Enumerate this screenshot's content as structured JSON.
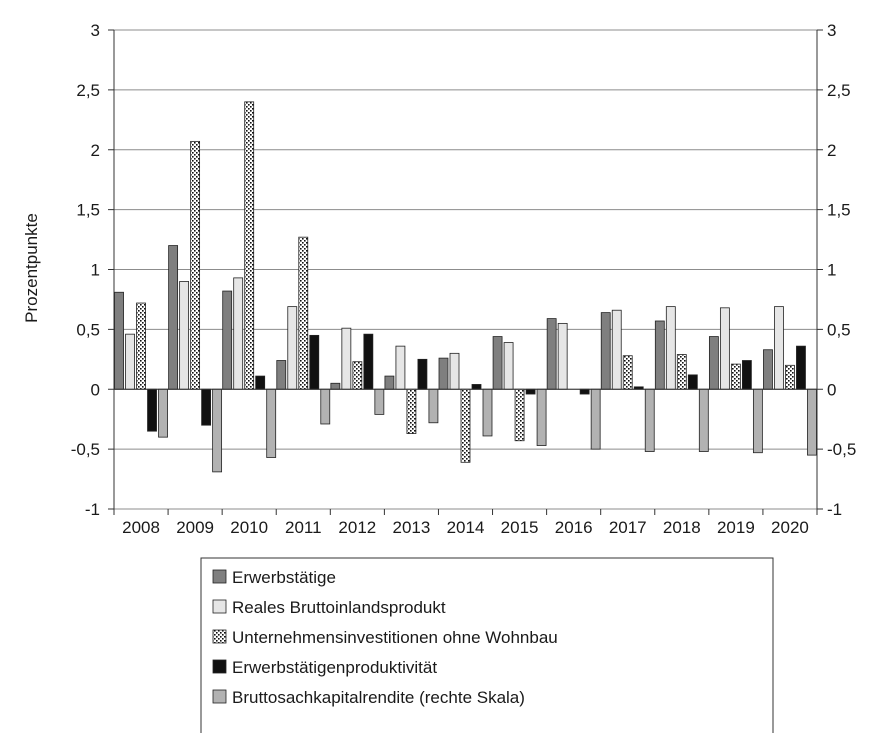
{
  "chart_data": {
    "type": "bar",
    "categories": [
      "2008",
      "2009",
      "2010",
      "2011",
      "2012",
      "2013",
      "2014",
      "2015",
      "2016",
      "2017",
      "2018",
      "2019",
      "2020"
    ],
    "ylabel": "Prozentpunkte",
    "ylim": [
      -1,
      3
    ],
    "y_ticks": [
      "-1",
      "-0,5",
      "0",
      "0,5",
      "1",
      "1,5",
      "2",
      "2,5",
      "3"
    ],
    "y_tick_values": [
      -1,
      -0.5,
      0,
      0.5,
      1,
      1.5,
      2,
      2.5,
      3
    ],
    "grid": true,
    "legend_position": "bottom",
    "series": [
      {
        "name": "Erwerbstätige",
        "pattern": "dark-gray",
        "color": "#7f7f7f",
        "values": [
          0.81,
          1.2,
          0.82,
          0.24,
          0.05,
          0.11,
          0.26,
          0.44,
          0.59,
          0.64,
          0.57,
          0.44,
          0.33
        ]
      },
      {
        "name": "Reales Bruttoinlandsprodukt",
        "pattern": "light-gray",
        "color": "#e6e6e6",
        "values": [
          0.46,
          0.9,
          0.93,
          0.69,
          0.51,
          0.36,
          0.3,
          0.39,
          0.55,
          0.66,
          0.69,
          0.68,
          0.69
        ]
      },
      {
        "name": "Unternehmensinvestitionen ohne Wohnbau",
        "pattern": "dotted",
        "color": "#ffffff",
        "values": [
          0.72,
          2.07,
          2.4,
          1.27,
          0.23,
          -0.37,
          -0.61,
          -0.43,
          0,
          0.28,
          0.29,
          0.21,
          0.2
        ]
      },
      {
        "name": "Erwerbstätigenproduktivität",
        "pattern": "black",
        "color": "#111111",
        "values": [
          -0.35,
          -0.3,
          0.11,
          0.45,
          0.46,
          0.25,
          0.04,
          -0.04,
          -0.04,
          0.02,
          0.12,
          0.24,
          0.36
        ]
      },
      {
        "name": "Bruttosachkapitalrendite (rechte Skala)",
        "pattern": "mid-gray",
        "color": "#b2b2b2",
        "values": [
          -0.4,
          -0.69,
          -0.57,
          -0.29,
          -0.21,
          -0.28,
          -0.39,
          -0.47,
          -0.5,
          -0.52,
          -0.52,
          -0.53,
          -0.55
        ]
      }
    ]
  }
}
